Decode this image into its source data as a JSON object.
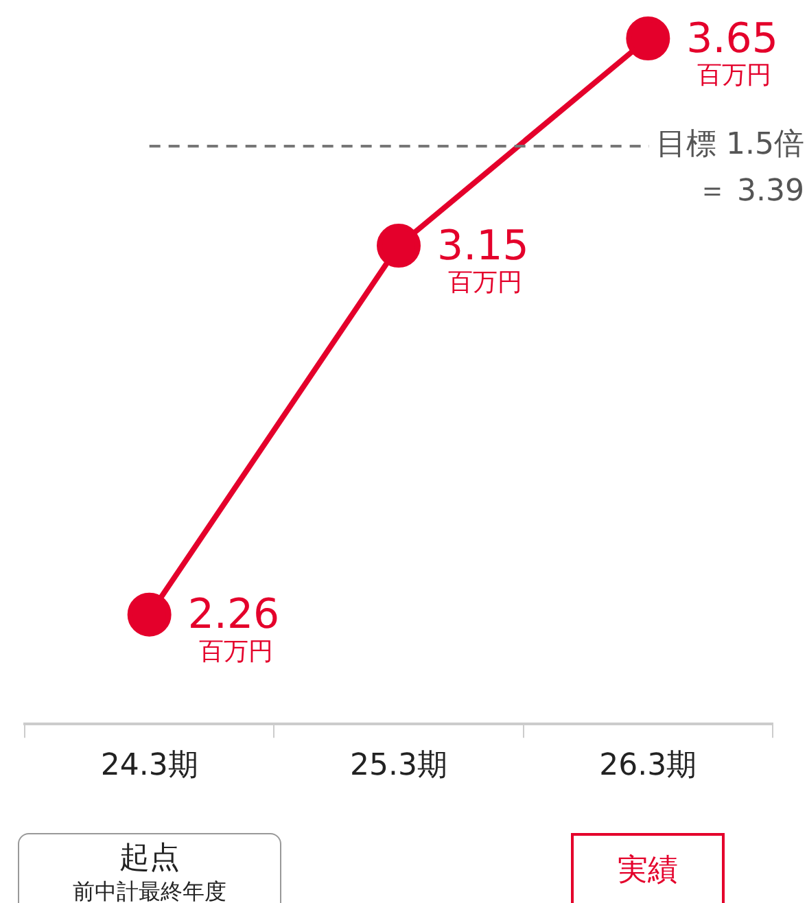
{
  "chart_data": {
    "type": "line",
    "categories": [
      "24.3期",
      "25.3期",
      "26.3期"
    ],
    "series": [
      {
        "color": "#e4002b",
        "values": [
          2.26,
          3.15,
          3.65
        ]
      }
    ],
    "data_labels": true,
    "ref_lines": [
      {
        "axis": "y",
        "value": 3.39,
        "label": "目標 1.5倍＝ 3.39",
        "color": "#777777",
        "line_style": "dashed"
      }
    ],
    "annotations": [
      {
        "text": "百万円",
        "x": "24.3期",
        "y": 2.26
      },
      {
        "text": "百万円",
        "x": "25.3期",
        "y": 3.15
      },
      {
        "text": "百万円",
        "x": "26.3期",
        "y": 3.65
      },
      "起点",
      "前中計最終年度",
      "実績"
    ],
    "marker": "circle",
    "line_style": "solid",
    "grid": false,
    "legend": false
  }
}
